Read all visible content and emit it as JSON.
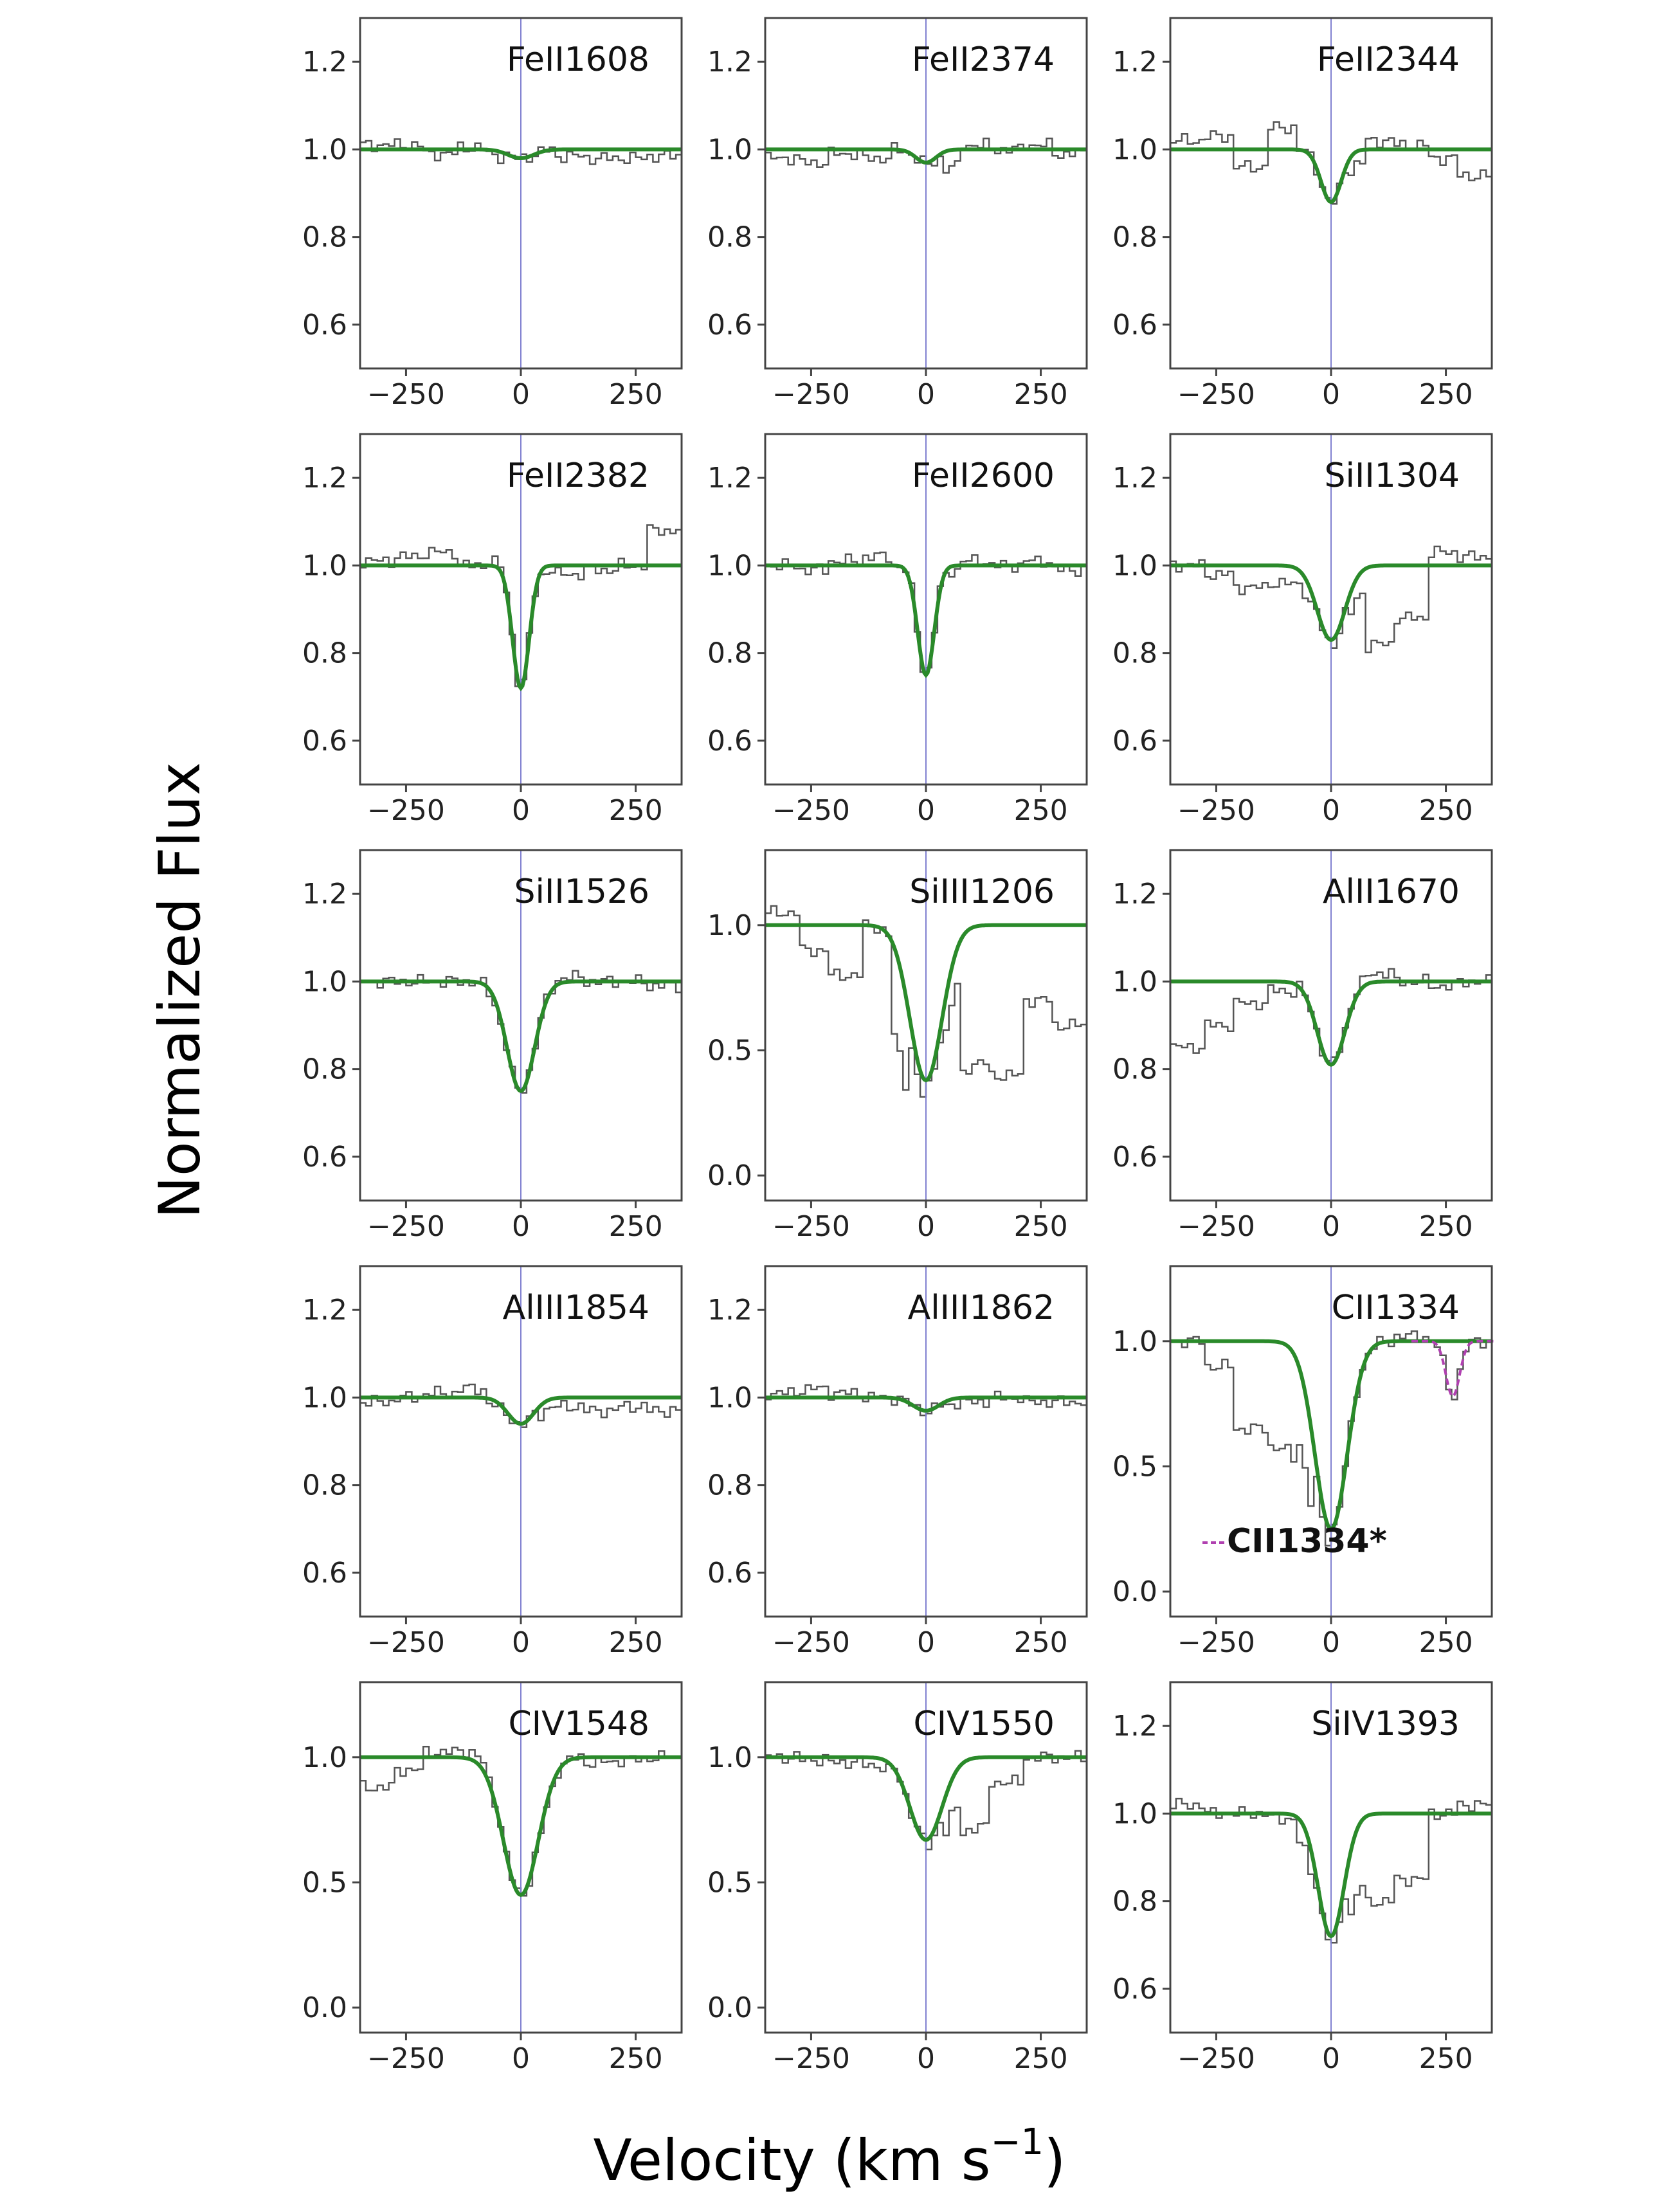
{
  "figure": {
    "ylabel": "Normalized Flux",
    "xlabel_main": "Velocity (km s",
    "xlabel_sup": "−1",
    "xlabel_close": ")"
  },
  "colors": {
    "fit": "#2a8a2a",
    "data": "#555555",
    "zero_line": "#8080d0",
    "axes": "#444444",
    "cii_star": "#b040b0"
  },
  "chart_data": [
    {
      "type": "line",
      "title": "FeII1608",
      "xlim": [
        -350,
        350
      ],
      "ylim": [
        0.5,
        1.3
      ],
      "xticks": [
        -250,
        0,
        250
      ],
      "xtick_labels": [
        "−250",
        "0",
        "250"
      ],
      "yticks": [
        0.6,
        0.8,
        1.0,
        1.2
      ],
      "ytick_labels": [
        "0.6",
        "0.8",
        "1.0",
        "1.2"
      ],
      "series": [
        {
          "depth": 0.02,
          "width": 28,
          "center": 0
        }
      ],
      "noise": [
        0.01,
        0.01,
        -0.01,
        0.005,
        -0.01,
        0.0,
        -0.015,
        -0.02,
        -0.02,
        -0.015
      ]
    },
    {
      "type": "line",
      "title": "FeII2374",
      "xlim": [
        -350,
        350
      ],
      "ylim": [
        0.5,
        1.3
      ],
      "xticks": [
        -250,
        0,
        250
      ],
      "xtick_labels": [
        "−250",
        "0",
        "250"
      ],
      "yticks": [
        0.6,
        0.8,
        1.0,
        1.2
      ],
      "ytick_labels": [
        "0.6",
        "0.8",
        "1.0",
        "1.2"
      ],
      "series": [
        {
          "depth": 0.03,
          "width": 22,
          "center": 0
        }
      ],
      "noise": [
        -0.02,
        -0.03,
        -0.01,
        -0.02,
        0.0,
        -0.04,
        0.01,
        0.0,
        0.01,
        -0.01
      ]
    },
    {
      "type": "line",
      "title": "FeII2344",
      "xlim": [
        -350,
        350
      ],
      "ylim": [
        0.5,
        1.3
      ],
      "xticks": [
        -250,
        0,
        250
      ],
      "xtick_labels": [
        "−250",
        "0",
        "250"
      ],
      "yticks": [
        0.6,
        0.8,
        1.0,
        1.2
      ],
      "ytick_labels": [
        "0.6",
        "0.8",
        "1.0",
        "1.2"
      ],
      "series": [
        {
          "depth": 0.12,
          "width": 22,
          "center": 0
        }
      ],
      "noise": [
        0.02,
        0.03,
        -0.04,
        0.05,
        0.0,
        -0.03,
        0.02,
        0.01,
        -0.02,
        -0.06
      ]
    },
    {
      "type": "line",
      "title": "FeII2382",
      "xlim": [
        -350,
        350
      ],
      "ylim": [
        0.5,
        1.3
      ],
      "xticks": [
        -250,
        0,
        250
      ],
      "xtick_labels": [
        "−250",
        "0",
        "250"
      ],
      "yticks": [
        0.6,
        0.8,
        1.0,
        1.2
      ],
      "ytick_labels": [
        "0.6",
        "0.8",
        "1.0",
        "1.2"
      ],
      "series": [
        {
          "depth": 0.28,
          "width": 18,
          "center": 0
        }
      ],
      "noise": [
        0.01,
        0.02,
        0.03,
        0.0,
        0.01,
        -0.01,
        -0.02,
        -0.01,
        0.0,
        0.08
      ]
    },
    {
      "type": "line",
      "title": "FeII2600",
      "xlim": [
        -350,
        350
      ],
      "ylim": [
        0.5,
        1.3
      ],
      "xticks": [
        -250,
        0,
        250
      ],
      "xtick_labels": [
        "−250",
        "0",
        "250"
      ],
      "yticks": [
        0.6,
        0.8,
        1.0,
        1.2
      ],
      "ytick_labels": [
        "0.6",
        "0.8",
        "1.0",
        "1.2"
      ],
      "series": [
        {
          "depth": 0.25,
          "width": 18,
          "center": 0
        }
      ],
      "noise": [
        0.0,
        -0.01,
        0.01,
        0.02,
        0.0,
        -0.01,
        0.01,
        0.0,
        0.01,
        -0.01
      ]
    },
    {
      "type": "line",
      "title": "SiII1304",
      "xlim": [
        -350,
        350
      ],
      "ylim": [
        0.5,
        1.3
      ],
      "xticks": [
        -250,
        0,
        250
      ],
      "xtick_labels": [
        "−250",
        "0",
        "250"
      ],
      "yticks": [
        0.6,
        0.8,
        1.0,
        1.2
      ],
      "ytick_labels": [
        "0.6",
        "0.8",
        "1.0",
        "1.2"
      ],
      "series": [
        {
          "depth": 0.17,
          "width": 30,
          "center": 0
        }
      ],
      "noise": [
        0.0,
        -0.02,
        -0.05,
        -0.04,
        -0.03,
        -0.05,
        -0.18,
        -0.12,
        0.03,
        0.02
      ]
    },
    {
      "type": "line",
      "title": "SiII1526",
      "xlim": [
        -350,
        350
      ],
      "ylim": [
        0.5,
        1.3
      ],
      "xticks": [
        -250,
        0,
        250
      ],
      "xtick_labels": [
        "−250",
        "0",
        "250"
      ],
      "yticks": [
        0.6,
        0.8,
        1.0,
        1.2
      ],
      "ytick_labels": [
        "0.6",
        "0.8",
        "1.0",
        "1.2"
      ],
      "series": [
        {
          "depth": 0.25,
          "width": 30,
          "center": 0
        }
      ],
      "noise": [
        0.0,
        0.0,
        0.0,
        0.0,
        -0.01,
        0.0,
        0.01,
        0.0,
        0.0,
        -0.01
      ]
    },
    {
      "type": "line",
      "title": "SiIII1206",
      "xlim": [
        -350,
        350
      ],
      "ylim": [
        -0.1,
        1.3
      ],
      "xticks": [
        -250,
        0,
        250
      ],
      "xtick_labels": [
        "−250",
        "0",
        "250"
      ],
      "yticks": [
        0.0,
        0.5,
        1.0
      ],
      "ytick_labels": [
        "0.0",
        "0.5",
        "1.0"
      ],
      "series": [
        {
          "depth": 0.62,
          "width": 35,
          "center": 0
        }
      ],
      "noise": [
        0.05,
        -0.1,
        -0.2,
        0.0,
        -0.35,
        -0.15,
        -0.55,
        -0.6,
        -0.3,
        -0.4
      ]
    },
    {
      "type": "line",
      "title": "AlII1670",
      "xlim": [
        -350,
        350
      ],
      "ylim": [
        0.5,
        1.3
      ],
      "xticks": [
        -250,
        0,
        250
      ],
      "xtick_labels": [
        "−250",
        "0",
        "250"
      ],
      "yticks": [
        0.6,
        0.8,
        1.0,
        1.2
      ],
      "ytick_labels": [
        "0.6",
        "0.8",
        "1.0",
        "1.2"
      ],
      "series": [
        {
          "depth": 0.19,
          "width": 30,
          "center": 0
        }
      ],
      "noise": [
        -0.15,
        -0.1,
        -0.05,
        -0.02,
        0.0,
        0.01,
        0.02,
        0.0,
        -0.01,
        0.0
      ]
    },
    {
      "type": "line",
      "title": "AlIII1854",
      "xlim": [
        -350,
        350
      ],
      "ylim": [
        0.5,
        1.3
      ],
      "xticks": [
        -250,
        0,
        250
      ],
      "xtick_labels": [
        "−250",
        "0",
        "250"
      ],
      "yticks": [
        0.6,
        0.8,
        1.0,
        1.2
      ],
      "ytick_labels": [
        "0.6",
        "0.8",
        "1.0",
        "1.2"
      ],
      "series": [
        {
          "depth": 0.06,
          "width": 28,
          "center": 0
        }
      ],
      "noise": [
        -0.01,
        0.0,
        0.01,
        0.02,
        -0.01,
        -0.02,
        -0.02,
        -0.03,
        -0.02,
        -0.03
      ]
    },
    {
      "type": "line",
      "title": "AlIII1862",
      "xlim": [
        -350,
        350
      ],
      "ylim": [
        0.5,
        1.3
      ],
      "xticks": [
        -250,
        0,
        250
      ],
      "xtick_labels": [
        "−250",
        "0",
        "250"
      ],
      "yticks": [
        0.6,
        0.8,
        1.0,
        1.2
      ],
      "ytick_labels": [
        "0.6",
        "0.8",
        "1.0",
        "1.2"
      ],
      "series": [
        {
          "depth": 0.03,
          "width": 28,
          "center": 0
        }
      ],
      "noise": [
        0.01,
        0.02,
        0.01,
        0.0,
        0.0,
        -0.01,
        -0.01,
        0.0,
        -0.01,
        -0.01
      ]
    },
    {
      "type": "line",
      "title": "CII1334",
      "xlim": [
        -350,
        350
      ],
      "ylim": [
        -0.1,
        1.3
      ],
      "xticks": [
        -250,
        0,
        250
      ],
      "xtick_labels": [
        "−250",
        "0",
        "250"
      ],
      "yticks": [
        0.0,
        0.5,
        1.0
      ],
      "ytick_labels": [
        "0.0",
        "0.5",
        "1.0"
      ],
      "series": [
        {
          "depth": 0.75,
          "width": 35,
          "center": 0
        },
        {
          "name": "CII1334*",
          "depth": 0.22,
          "width": 15,
          "center": 265
        }
      ],
      "noise": [
        0.0,
        -0.1,
        -0.35,
        -0.42,
        -0.3,
        0.0,
        0.0,
        0.02,
        0.0,
        0.0
      ],
      "annotation": "CII1334*"
    },
    {
      "type": "line",
      "title": "CIV1548",
      "xlim": [
        -350,
        350
      ],
      "ylim": [
        -0.1,
        1.3
      ],
      "xticks": [
        -250,
        0,
        250
      ],
      "xtick_labels": [
        "−250",
        "0",
        "250"
      ],
      "yticks": [
        0.0,
        0.5,
        1.0
      ],
      "ytick_labels": [
        "0.0",
        "0.5",
        "1.0"
      ],
      "series": [
        {
          "depth": 0.55,
          "width": 38,
          "center": 0
        }
      ],
      "noise": [
        -0.12,
        -0.05,
        0.02,
        0.03,
        0.01,
        -0.02,
        0.0,
        -0.02,
        -0.01,
        0.0
      ]
    },
    {
      "type": "line",
      "title": "CIV1550",
      "xlim": [
        -350,
        350
      ],
      "ylim": [
        -0.1,
        1.3
      ],
      "xticks": [
        -250,
        0,
        250
      ],
      "xtick_labels": [
        "−250",
        "0",
        "250"
      ],
      "yticks": [
        0.0,
        0.5,
        1.0
      ],
      "ytick_labels": [
        "0.0",
        "0.5",
        "1.0"
      ],
      "series": [
        {
          "depth": 0.33,
          "width": 35,
          "center": 0
        }
      ],
      "noise": [
        0.0,
        -0.01,
        -0.02,
        -0.03,
        0.0,
        -0.15,
        -0.28,
        -0.1,
        0.0,
        0.0
      ]
    },
    {
      "type": "line",
      "title": "SiIV1393",
      "xlim": [
        -350,
        350
      ],
      "ylim": [
        0.5,
        1.3
      ],
      "xticks": [
        -250,
        0,
        250
      ],
      "xtick_labels": [
        "−250",
        "0",
        "250"
      ],
      "yticks": [
        0.6,
        0.8,
        1.0,
        1.2
      ],
      "ytick_labels": [
        "0.6",
        "0.8",
        "1.0",
        "1.2"
      ],
      "series": [
        {
          "depth": 0.28,
          "width": 28,
          "center": 0
        }
      ],
      "noise": [
        0.02,
        0.0,
        0.0,
        -0.01,
        -0.05,
        -0.15,
        -0.2,
        -0.15,
        0.0,
        0.02
      ]
    }
  ]
}
